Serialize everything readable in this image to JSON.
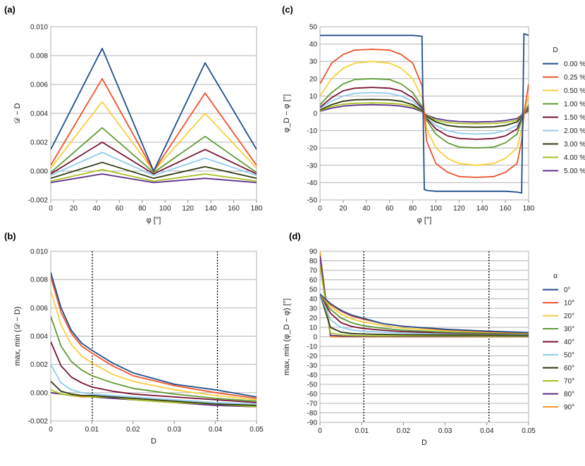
{
  "panel_labels": [
    "(a)",
    "(b)",
    "(c)",
    "(d)"
  ],
  "legends": {
    "c": {
      "title": "D",
      "entries": [
        "0.00 %",
        "0.25 %",
        "0.50 %",
        "1.00 %",
        "1.50 %",
        "2.00 %",
        "3.00 %",
        "4.00 %",
        "5.00 %"
      ]
    },
    "d": {
      "title": "α",
      "entries": [
        "0°",
        "10°",
        "20°",
        "30°",
        "40°",
        "50°",
        "60°",
        "70°",
        "80°",
        "90°"
      ]
    }
  },
  "colors": [
    "#1f4e8c",
    "#f0532b",
    "#f7cf3b",
    "#5e9c35",
    "#7a1034",
    "#8fcbef",
    "#2e3a0e",
    "#a8c020",
    "#5a2d8a",
    "#f59a2a"
  ],
  "chart_data": [
    {
      "id": "a",
      "type": "line",
      "xlabel": "φ [°]",
      "ylabel": "𝒟 − D",
      "xlim": [
        0,
        180
      ],
      "ylim": [
        -0.002,
        0.01
      ],
      "xticks": [
        "0",
        "20",
        "40",
        "60",
        "80",
        "100",
        "120",
        "140",
        "160",
        "180"
      ],
      "yticks": [
        "-0.002",
        "0.000",
        "0.002",
        "0.004",
        "0.006",
        "0.008",
        "0.010"
      ],
      "grid": true,
      "x": [
        0,
        45,
        90,
        135,
        180
      ],
      "series": [
        {
          "name": "0.00 %",
          "values": [
            0.0015,
            0.0085,
            0.0,
            0.0075,
            0.0015
          ]
        },
        {
          "name": "0.25 %",
          "values": [
            0.0004,
            0.0064,
            0.0,
            0.0054,
            0.0004
          ]
        },
        {
          "name": "0.50 %",
          "values": [
            0.0002,
            0.0048,
            0.0,
            0.004,
            0.0002
          ]
        },
        {
          "name": "1.00 %",
          "values": [
            -0.0001,
            0.003,
            -0.0001,
            0.0024,
            -0.0001
          ]
        },
        {
          "name": "1.50 %",
          "values": [
            -0.0002,
            0.002,
            -0.0002,
            0.0015,
            -0.0002
          ]
        },
        {
          "name": "2.00 %",
          "values": [
            -0.0003,
            0.0013,
            -0.0003,
            0.0009,
            -0.0003
          ]
        },
        {
          "name": "3.00 %",
          "values": [
            -0.0005,
            0.0006,
            -0.0005,
            0.0003,
            -0.0005
          ]
        },
        {
          "name": "4.00 %",
          "values": [
            -0.0007,
            0.0001,
            -0.0007,
            -0.0002,
            -0.0007
          ]
        },
        {
          "name": "5.00 %",
          "values": [
            -0.0008,
            -0.0002,
            -0.0008,
            -0.0005,
            -0.0008
          ]
        }
      ]
    },
    {
      "id": "b",
      "type": "line",
      "xlabel": "D",
      "ylabel": "max, min (𝒟 − D)",
      "xlim": [
        0,
        0.05
      ],
      "ylim": [
        -0.002,
        0.01
      ],
      "xticks": [
        "0",
        "0.01",
        "0.02",
        "0.03",
        "0.04",
        "0.05"
      ],
      "yticks": [
        "-0.002",
        "0.000",
        "0.002",
        "0.004",
        "0.006",
        "0.008",
        "0.010"
      ],
      "grid": true,
      "vlines": [
        0.0101,
        0.0405
      ],
      "x": [
        0,
        0.0025,
        0.005,
        0.0075,
        0.01,
        0.015,
        0.02,
        0.03,
        0.04,
        0.05
      ],
      "series": [
        {
          "name": "0°",
          "values": [
            0.0085,
            0.006,
            0.0044,
            0.0035,
            0.003,
            0.0021,
            0.0014,
            0.0006,
            0.0002,
            -0.0003
          ]
        },
        {
          "name": "10°",
          "values": [
            0.0082,
            0.0057,
            0.0042,
            0.0033,
            0.0028,
            0.0019,
            0.0012,
            0.0005,
            0.0,
            -0.0004
          ]
        },
        {
          "name": "20°",
          "values": [
            0.0072,
            0.0048,
            0.0034,
            0.0026,
            0.0021,
            0.0013,
            0.0008,
            0.0002,
            -0.0002,
            -0.0005
          ]
        },
        {
          "name": "30°",
          "values": [
            0.0054,
            0.0033,
            0.0022,
            0.0016,
            0.0012,
            0.0007,
            0.0003,
            -0.0001,
            -0.0004,
            -0.0006
          ]
        },
        {
          "name": "40°",
          "values": [
            0.0036,
            0.0019,
            0.0011,
            0.0007,
            0.0004,
            0.0001,
            -0.0001,
            -0.0003,
            -0.0005,
            -0.0007
          ]
        },
        {
          "name": "50°",
          "values": [
            0.002,
            0.0007,
            0.0002,
            0.0,
            -0.0001,
            -0.0002,
            -0.0003,
            -0.0005,
            -0.0007,
            -0.0008
          ]
        },
        {
          "name": "60°",
          "values": [
            0.0008,
            0.0001,
            -0.0001,
            -0.0002,
            -0.0002,
            -0.0003,
            -0.0004,
            -0.0006,
            -0.0008,
            -0.0009
          ]
        },
        {
          "name": "70°",
          "values": [
            0.0002,
            -0.0001,
            -0.0002,
            -0.0002,
            -0.0003,
            -0.0003,
            -0.0005,
            -0.0007,
            -0.0008,
            -0.001
          ]
        },
        {
          "name": "80°",
          "values": [
            0.0,
            -0.0001,
            -0.0002,
            -0.0002,
            -0.0003,
            -0.0004,
            -0.0005,
            -0.0007,
            -0.0009,
            -0.001
          ]
        },
        {
          "name": "90°",
          "values": [
            0.0,
            -0.0001,
            -0.0002,
            -0.0003,
            -0.0003,
            -0.0004,
            -0.0005,
            -0.0007,
            -0.0009,
            -0.001
          ]
        }
      ]
    },
    {
      "id": "c",
      "type": "line",
      "xlabel": "φ [°]",
      "ylabel": "φ_D − φ [°]",
      "xlim": [
        0,
        180
      ],
      "ylim": [
        -50,
        50
      ],
      "xticks": [
        "0",
        "20",
        "40",
        "60",
        "80",
        "100",
        "120",
        "140",
        "160",
        "180"
      ],
      "yticks": [
        "-50",
        "-40",
        "-30",
        "-20",
        "-10",
        "0",
        "10",
        "20",
        "30",
        "40",
        "50"
      ],
      "grid": true,
      "x": [
        0,
        10,
        20,
        30,
        45,
        60,
        70,
        80,
        88,
        90,
        92,
        100,
        110,
        120,
        135,
        150,
        160,
        170,
        174,
        176,
        180
      ],
      "series": [
        {
          "name": "0.00 %",
          "values": [
            45,
            45,
            45,
            45,
            45,
            45,
            45,
            45,
            44.5,
            -44,
            -44.5,
            -45,
            -45,
            -45,
            -45,
            -45,
            -45,
            -45.5,
            -46,
            46,
            45
          ]
        },
        {
          "name": "0.25 %",
          "values": [
            17,
            29,
            34,
            36.5,
            37,
            36.5,
            34,
            29,
            16,
            0,
            -16,
            -29,
            -34,
            -36.5,
            -37,
            -36.5,
            -34,
            -29,
            -16,
            0,
            17
          ]
        },
        {
          "name": "0.50 %",
          "values": [
            10,
            20,
            26,
            29,
            30,
            29,
            26,
            20,
            9,
            0,
            -9,
            -20,
            -26,
            -29,
            -30,
            -29,
            -26,
            -20,
            -9,
            0,
            10
          ]
        },
        {
          "name": "1.00 %",
          "values": [
            5,
            12,
            17,
            19.5,
            20,
            19.5,
            17,
            12,
            4,
            0,
            -4,
            -12,
            -17,
            -19.5,
            -20,
            -19.5,
            -17,
            -12,
            -4,
            0,
            5
          ]
        },
        {
          "name": "1.50 %",
          "values": [
            3.5,
            9,
            13,
            14.5,
            15,
            14.5,
            13,
            9,
            3,
            0,
            -3,
            -9,
            -13,
            -14.5,
            -15,
            -14.5,
            -13,
            -9,
            -3,
            0,
            3.5
          ]
        },
        {
          "name": "2.00 %",
          "values": [
            3,
            7,
            10,
            11.5,
            12,
            11.5,
            10,
            7,
            2.5,
            0,
            -2.5,
            -7,
            -10,
            -11.5,
            -12,
            -11.5,
            -10,
            -7,
            -2.5,
            0,
            3
          ]
        },
        {
          "name": "3.00 %",
          "values": [
            2,
            5,
            7,
            7.8,
            8,
            7.8,
            7,
            5,
            1.7,
            0,
            -1.7,
            -5,
            -7,
            -7.8,
            -8,
            -7.8,
            -7,
            -5,
            -1.7,
            0,
            2
          ]
        },
        {
          "name": "4.00 %",
          "values": [
            1.5,
            4,
            5.3,
            5.8,
            6,
            5.8,
            5.3,
            4,
            1.3,
            0,
            -1.3,
            -4,
            -5.3,
            -5.8,
            -6,
            -5.8,
            -5.3,
            -4,
            -1.3,
            0,
            1.5
          ]
        },
        {
          "name": "5.00 %",
          "values": [
            1.2,
            3,
            4.2,
            4.7,
            5,
            4.7,
            4.2,
            3,
            1,
            0,
            -1,
            -3,
            -4.2,
            -4.7,
            -5,
            -4.7,
            -4.2,
            -3,
            -1,
            0,
            1.2
          ]
        }
      ]
    },
    {
      "id": "d",
      "type": "line",
      "xlabel": "D",
      "ylabel": "max, min (φ_D − φ) [°]",
      "xlim": [
        0,
        0.05
      ],
      "ylim": [
        -90,
        90
      ],
      "xticks": [
        "0",
        "0.01",
        "0.02",
        "0.03",
        "0.04",
        "0.05"
      ],
      "yticks": [
        "-90",
        "-80",
        "-70",
        "-60",
        "-50",
        "-40",
        "-30",
        "-20",
        "-10",
        "0",
        "10",
        "20",
        "30",
        "40",
        "50",
        "60",
        "70",
        "80",
        "90"
      ],
      "grid": true,
      "vlines": [
        0.0105,
        0.0405
      ],
      "x": [
        0,
        0.0025,
        0.005,
        0.0075,
        0.01,
        0.015,
        0.02,
        0.03,
        0.04,
        0.05
      ],
      "series": [
        {
          "name": "0°",
          "values": [
            45,
            35,
            28,
            23,
            20,
            14,
            11,
            8,
            6,
            4.5
          ]
        },
        {
          "name": "10°",
          "values": [
            45,
            34,
            27,
            22,
            19,
            14,
            11,
            7.5,
            5.5,
            4.3
          ]
        },
        {
          "name": "20°",
          "values": [
            45,
            32,
            24,
            19,
            16,
            12,
            9,
            6.5,
            5,
            4
          ]
        },
        {
          "name": "30°",
          "values": [
            45,
            29,
            20,
            15,
            12,
            9,
            7,
            5,
            4,
            3.5
          ]
        },
        {
          "name": "40°",
          "values": [
            45,
            25,
            15,
            11,
            9,
            7,
            5.5,
            4.2,
            3.5,
            3
          ]
        },
        {
          "name": "50°",
          "values": [
            45,
            18,
            10,
            7.5,
            6,
            5,
            4,
            3.5,
            3,
            2.5
          ]
        },
        {
          "name": "60°",
          "values": [
            45,
            10,
            5,
            3.5,
            3,
            2.5,
            2.2,
            2,
            1.8,
            1.6
          ]
        },
        {
          "name": "70°",
          "values": [
            75,
            4,
            2,
            1.5,
            1.2,
            1,
            1,
            1,
            0.9,
            0.8
          ]
        },
        {
          "name": "80°",
          "values": [
            85,
            1.5,
            0.8,
            0.6,
            0.5,
            0.5,
            0.4,
            0.4,
            0.4,
            0.3
          ]
        },
        {
          "name": "90°",
          "values": [
            90,
            0,
            0,
            0,
            0,
            0,
            0,
            0,
            0,
            0
          ]
        }
      ]
    }
  ]
}
